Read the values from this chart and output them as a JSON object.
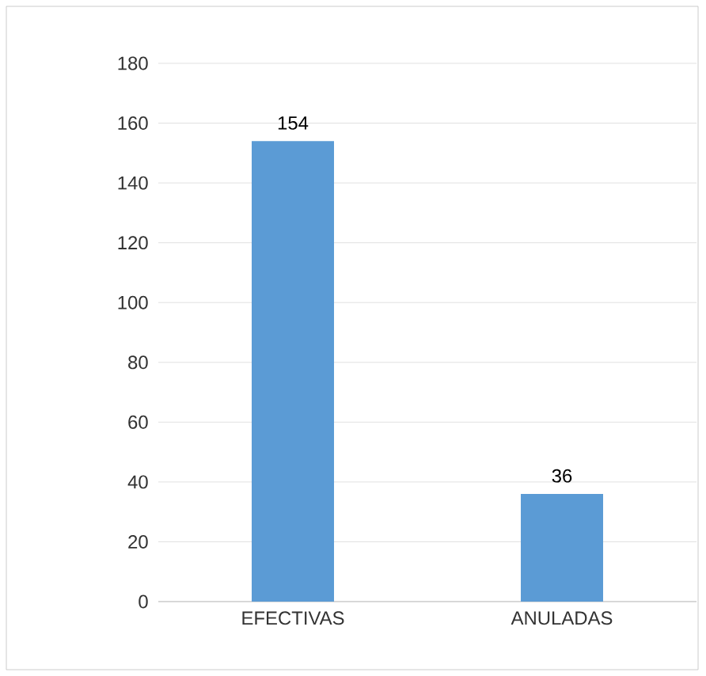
{
  "chart_data": {
    "type": "bar",
    "categories": [
      "EFECTIVAS",
      "ANULADAS"
    ],
    "values": [
      154,
      36
    ],
    "color": "#5b9bd5",
    "ylim": [
      0,
      180
    ],
    "yticks": [
      0,
      20,
      40,
      60,
      80,
      100,
      120,
      140,
      160,
      180
    ],
    "grid": "y",
    "data_labels": true
  }
}
